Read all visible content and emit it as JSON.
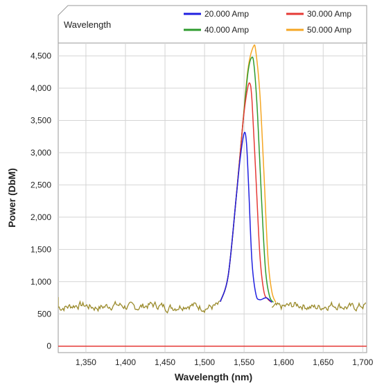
{
  "chart_data": {
    "type": "line",
    "title": "Wavelength",
    "xlabel": "Wavelength (nm)",
    "ylabel": "Power (DbM)",
    "xlim": [
      1315,
      1705
    ],
    "ylim": [
      -100,
      4700
    ],
    "grid": true,
    "legend_position": "top-right",
    "x_ticks": [
      1350,
      1400,
      1450,
      1500,
      1550,
      1600,
      1650,
      1700
    ],
    "x_tick_labels": [
      "1,350",
      "1,400",
      "1,450",
      "1,500",
      "1,550",
      "1,600",
      "1,650",
      "1,700"
    ],
    "y_ticks": [
      0,
      500,
      1000,
      1500,
      2000,
      2500,
      3000,
      3500,
      4000,
      4500
    ],
    "y_tick_labels": [
      "0",
      "500",
      "1,000",
      "1,500",
      "2,000",
      "2,500",
      "3,000",
      "3,500",
      "4,000",
      "4,500"
    ],
    "baseline": {
      "y": 0,
      "color": "#e53935"
    },
    "noise_floor": {
      "x": [
        1315,
        1520,
        1585,
        1705
      ],
      "mean": 620,
      "amplitude": 55
    },
    "series": [
      {
        "name": "20.000 Amp",
        "color": "#1f1fe0",
        "x": [
          1520,
          1530,
          1540,
          1545,
          1550,
          1553,
          1556,
          1560,
          1565,
          1570,
          1578,
          1585
        ],
        "y": [
          690,
          1100,
          2300,
          2900,
          3300,
          3150,
          2400,
          1300,
          800,
          720,
          750,
          680
        ]
      },
      {
        "name": "30.000 Amp",
        "color": "#e53935",
        "x": [
          1520,
          1530,
          1540,
          1548,
          1553,
          1557,
          1560,
          1565,
          1570,
          1575,
          1580,
          1585
        ],
        "y": [
          690,
          1100,
          2300,
          3400,
          3900,
          4080,
          3800,
          2600,
          1400,
          850,
          730,
          680
        ]
      },
      {
        "name": "40.000 Amp",
        "color": "#2e9b2e",
        "x": [
          1520,
          1530,
          1540,
          1548,
          1555,
          1560,
          1563,
          1567,
          1572,
          1577,
          1582,
          1587
        ],
        "y": [
          690,
          1100,
          2300,
          3400,
          4250,
          4480,
          4300,
          3600,
          2300,
          1200,
          780,
          680
        ]
      },
      {
        "name": "50.000 Amp",
        "color": "#f5a623",
        "x": [
          1520,
          1530,
          1540,
          1548,
          1555,
          1562,
          1565,
          1570,
          1575,
          1580,
          1585,
          1590
        ],
        "y": [
          690,
          1100,
          2300,
          3400,
          4300,
          4650,
          4550,
          3900,
          2700,
          1400,
          850,
          680
        ]
      }
    ]
  }
}
